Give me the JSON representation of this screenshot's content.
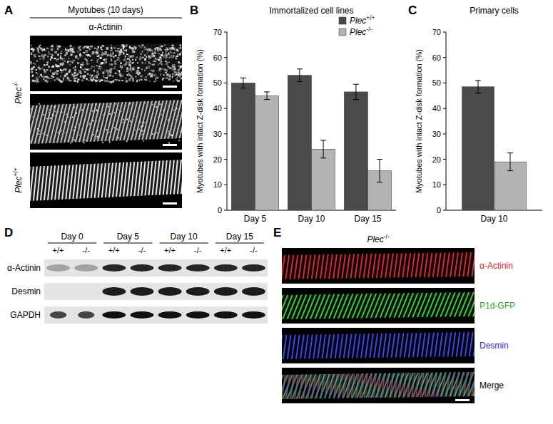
{
  "chart_data": [
    {
      "type": "bar",
      "title": "Immortalized cell lines",
      "ylabel": "Myotubes with intact Z-disk formation (%)",
      "categories": [
        "Day 5",
        "Day 10",
        "Day 15"
      ],
      "series": [
        {
          "name": "Plec+/+",
          "color": "#4a4a4a",
          "values": [
            50,
            53,
            46.5
          ],
          "errors": [
            2,
            2.5,
            3
          ]
        },
        {
          "name": "Plec-/-",
          "color": "#b3b3b3",
          "values": [
            45,
            24,
            15.5
          ],
          "errors": [
            1.5,
            3.5,
            4.5
          ]
        }
      ],
      "ylim": [
        0,
        70
      ],
      "yticks": [
        0,
        10,
        20,
        30,
        40,
        50,
        60,
        70
      ],
      "legend": "upper right"
    },
    {
      "type": "bar",
      "title": "Primary cells",
      "ylabel": "Myotubes with intact Z-disk formation (%)",
      "categories": [
        "Day 10"
      ],
      "series": [
        {
          "name": "Plec+/+",
          "color": "#4a4a4a",
          "values": [
            48.5
          ],
          "errors": [
            2.5
          ]
        },
        {
          "name": "Plec-/-",
          "color": "#b3b3b3",
          "values": [
            19
          ],
          "errors": [
            3.5
          ]
        }
      ],
      "ylim": [
        0,
        70
      ],
      "yticks": [
        0,
        10,
        20,
        30,
        40,
        50,
        60,
        70
      ]
    }
  ],
  "panel_labels": [
    "A",
    "B",
    "C",
    "D",
    "E"
  ],
  "panel_a": {
    "title": "Myotubes (10 days)",
    "stain": "α-Actinin",
    "rows": [
      "Plec-/-",
      "Plec+/+"
    ]
  },
  "panel_d": {
    "columns": [
      "Day 0",
      "Day 5",
      "Day 10",
      "Day 15"
    ],
    "genotypes": [
      "+/+",
      "-/-"
    ],
    "rows": [
      "α-Actinin",
      "Desmin",
      "GAPDH"
    ]
  },
  "panel_e": {
    "title": "Plec-/-",
    "channels": [
      "α-Actinin",
      "P1d-GFP",
      "Desmin",
      "Merge"
    ]
  }
}
